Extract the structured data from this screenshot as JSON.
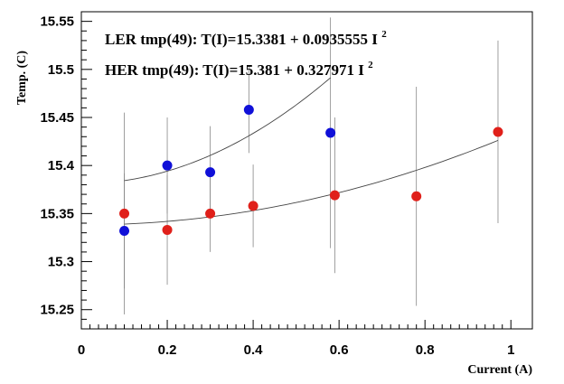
{
  "chart_data": {
    "type": "scatter",
    "title": "",
    "xlabel": "Current (A)",
    "ylabel": "Temp. (C)",
    "xlim": [
      0,
      1.05
    ],
    "ylim": [
      15.23,
      15.56
    ],
    "x_ticks": [
      "0",
      "0.2",
      "0.4",
      "0.6",
      "0.8",
      "1"
    ],
    "y_ticks": [
      "15.25",
      "15.3",
      "15.35",
      "15.4",
      "15.45",
      "15.5",
      "15.55"
    ],
    "grid": false,
    "legend_position": "top-left",
    "series": [
      {
        "name": "LER tmp(49): T(I)=15.3381 + 0.0935555 I",
        "exponent": "2",
        "color": "#e0201a",
        "fit": {
          "a": 15.3381,
          "b": 0.0935555,
          "x_range": [
            0.1,
            0.97
          ]
        },
        "points": [
          {
            "x": 0.1,
            "y": 15.35,
            "yerr": 0.105
          },
          {
            "x": 0.2,
            "y": 15.333,
            "yerr": 0.057
          },
          {
            "x": 0.3,
            "y": 15.35,
            "yerr": 0.04
          },
          {
            "x": 0.4,
            "y": 15.358,
            "yerr": 0.043
          },
          {
            "x": 0.59,
            "y": 15.369,
            "yerr": 0.081
          },
          {
            "x": 0.78,
            "y": 15.368,
            "yerr": 0.114
          },
          {
            "x": 0.97,
            "y": 15.435,
            "yerr": 0.095
          }
        ]
      },
      {
        "name": "HER tmp(49): T(I)=15.381 + 0.327971 I",
        "exponent": "2",
        "color": "#1010d8",
        "fit": {
          "a": 15.381,
          "b": 0.327971,
          "x_range": [
            0.1,
            0.58
          ]
        },
        "points": [
          {
            "x": 0.1,
            "y": 15.332,
            "yerr": 0.06
          },
          {
            "x": 0.2,
            "y": 15.4,
            "yerr": 0.05
          },
          {
            "x": 0.3,
            "y": 15.393,
            "yerr": 0.048
          },
          {
            "x": 0.39,
            "y": 15.458,
            "yerr": 0.045
          },
          {
            "x": 0.58,
            "y": 15.434,
            "yerr": 0.12
          }
        ]
      }
    ]
  }
}
